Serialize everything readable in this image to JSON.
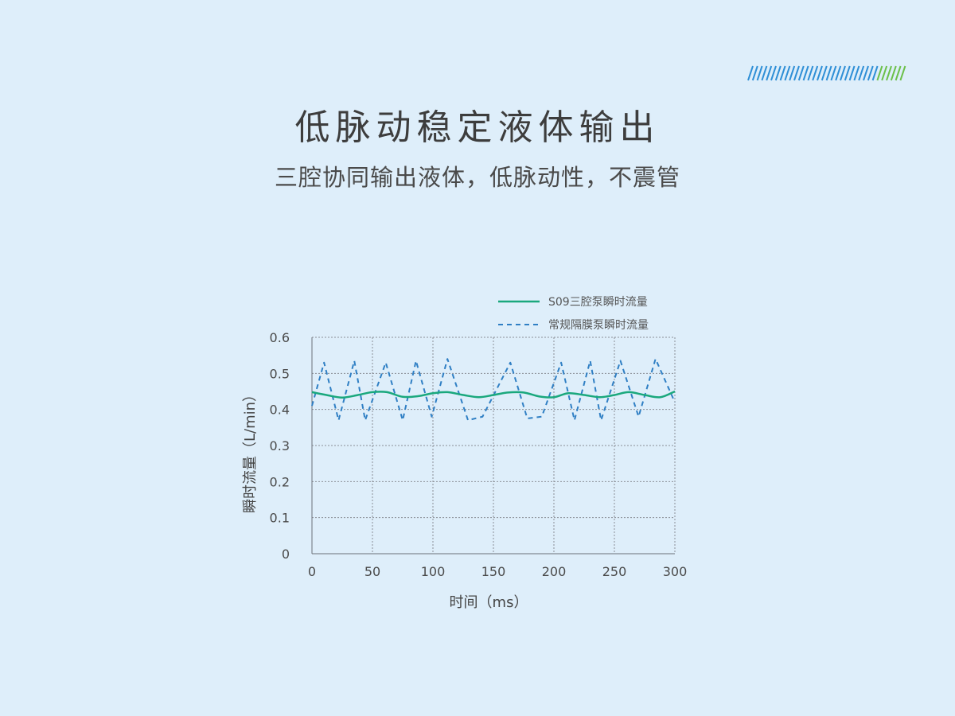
{
  "header": {
    "title": "低脉动稳定液体输出",
    "subtitle": "三腔协同输出液体，低脉动性，不震管"
  },
  "colors": {
    "background": "#deeefa",
    "solid_series": "#1aa87d",
    "dashed_series": "#2f7fc4",
    "stripe_blue": "#2f8fd6",
    "stripe_green": "#6cc04a"
  },
  "chart_data": {
    "type": "line",
    "title": "",
    "xlabel": "时间（ms）",
    "ylabel": "瞬时流量（L/min）",
    "xlim": [
      0,
      300
    ],
    "ylim": [
      0,
      0.6
    ],
    "x_ticks": [
      "0",
      "50",
      "100",
      "150",
      "200",
      "250",
      "300"
    ],
    "y_ticks": [
      "0",
      "0.1",
      "0.2",
      "0.3",
      "0.4",
      "0.5",
      "0.6"
    ],
    "grid": true,
    "legend_position": "top-right",
    "series": [
      {
        "name": "S09三腔泵瞬时流量",
        "style": "solid",
        "color": "#1aa87d",
        "x": [
          0,
          12,
          25,
          38,
          50,
          62,
          75,
          88,
          100,
          112,
          125,
          138,
          150,
          162,
          175,
          188,
          200,
          212,
          225,
          238,
          250,
          262,
          275,
          288,
          300
        ],
        "y": [
          0.448,
          0.44,
          0.433,
          0.44,
          0.448,
          0.448,
          0.435,
          0.437,
          0.445,
          0.448,
          0.44,
          0.434,
          0.44,
          0.447,
          0.447,
          0.436,
          0.434,
          0.445,
          0.44,
          0.434,
          0.44,
          0.448,
          0.44,
          0.434,
          0.45
        ]
      },
      {
        "name": "常规隔膜泵瞬时流量",
        "style": "dashed",
        "color": "#2f7fc4",
        "x": [
          0,
          10,
          22,
          35,
          44,
          61,
          75,
          86,
          99,
          112,
          129,
          141,
          164,
          178,
          190,
          206,
          217,
          230,
          239,
          255,
          270,
          284,
          300
        ],
        "y": [
          0.41,
          0.53,
          0.37,
          0.535,
          0.37,
          0.53,
          0.37,
          0.535,
          0.38,
          0.54,
          0.37,
          0.38,
          0.53,
          0.375,
          0.38,
          0.53,
          0.37,
          0.535,
          0.37,
          0.535,
          0.38,
          0.54,
          0.42
        ]
      }
    ]
  }
}
